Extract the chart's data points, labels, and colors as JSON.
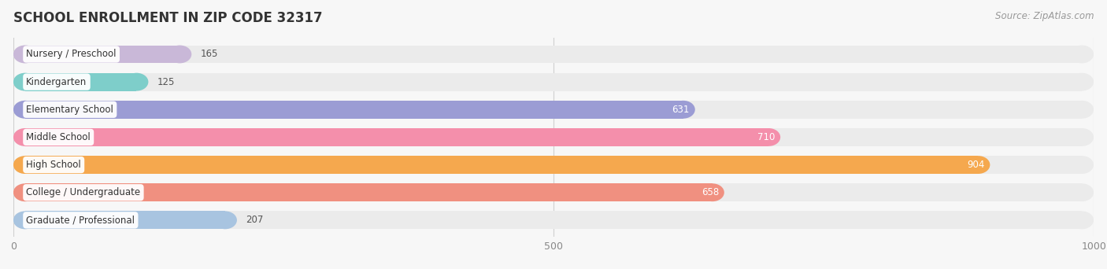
{
  "title": "SCHOOL ENROLLMENT IN ZIP CODE 32317",
  "source": "Source: ZipAtlas.com",
  "categories": [
    "Nursery / Preschool",
    "Kindergarten",
    "Elementary School",
    "Middle School",
    "High School",
    "College / Undergraduate",
    "Graduate / Professional"
  ],
  "values": [
    165,
    125,
    631,
    710,
    904,
    658,
    207
  ],
  "bar_colors": [
    "#c9b8d8",
    "#7ececa",
    "#9b9cd4",
    "#f48fab",
    "#f5a84e",
    "#f09080",
    "#a8c4e0"
  ],
  "bar_bg_color": "#ebebeb",
  "bar_label_inside_color": "#ffffff",
  "bar_label_outside_color": "#555555",
  "label_bg_color": "#ffffff",
  "xlim": [
    0,
    1000
  ],
  "xticks": [
    0,
    500,
    1000
  ],
  "title_fontsize": 12,
  "source_fontsize": 8.5,
  "label_fontsize": 8.5,
  "value_fontsize": 8.5,
  "background_color": "#f7f7f7"
}
